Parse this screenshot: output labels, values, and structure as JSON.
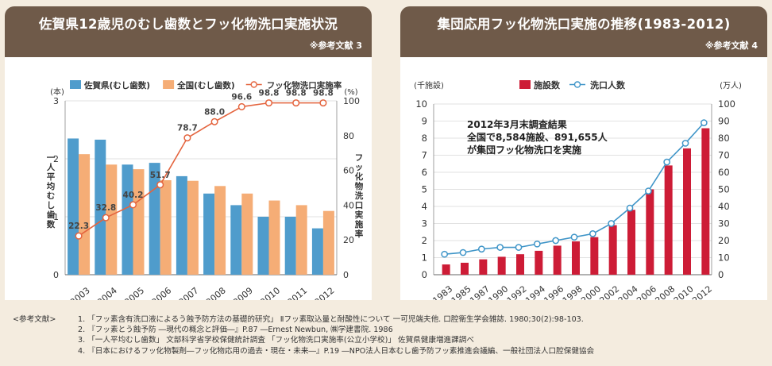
{
  "panel1": {
    "title": "佐賀県12歳児のむし歯数とフッ化物洗口実施状況",
    "ref": "※参考文献 3"
  },
  "panel2": {
    "title": "集団応用フッ化物洗口実施の推移(1983-2012)",
    "ref": "※参考文献 4"
  },
  "references": {
    "label": "<参考文献>",
    "items": [
      "1. 「フッ素含有洗口液によるう蝕予防方法の基礎的研究」 Ⅱフッ素取込量と耐酸性について 一可児端夫他. 口腔衛生学会雑誌. 1980;30(2):98-103.",
      "2. 『フッ素とう蝕予防 ―現代の概念と評価―』P.87 ―Ernest Newbun, ㈱学建書院. 1986",
      "3. 「一人平均むし歯数」 文部科学省学校保健統計調査 「フッ化物洗口実施率(公立小学校)」 佐賀県健康増進課調べ",
      "4. 『日本におけるフッ化物製剤―フッ化物応用の過去・現在・未来―』P.19 ―NPO法人日本むし歯予防フッ素推進会議編、一般社団法人口腔保健協会"
    ]
  },
  "chart_data": [
    {
      "type": "bar",
      "categories": [
        "2003",
        "2004",
        "2005",
        "2006",
        "2007",
        "2008",
        "2009",
        "2010",
        "2011",
        "2012"
      ],
      "series": [
        {
          "name": "佐賀県(むし歯数)",
          "type": "bar",
          "axis": "left",
          "color": "#4f9ccc",
          "values": [
            2.35,
            2.33,
            1.9,
            1.93,
            1.7,
            1.4,
            1.2,
            1.0,
            1.0,
            0.8
          ]
        },
        {
          "name": "全国(むし歯数)",
          "type": "bar",
          "axis": "left",
          "color": "#f5ad76",
          "values": [
            2.08,
            1.9,
            1.82,
            1.63,
            1.62,
            1.53,
            1.4,
            1.28,
            1.2,
            1.1
          ]
        },
        {
          "name": "フッ化物洗口実施率",
          "type": "line",
          "axis": "right",
          "color": "#e4643e",
          "values": [
            22.3,
            32.8,
            40.2,
            51.7,
            78.7,
            88.0,
            96.6,
            98.8,
            98.8,
            98.8
          ],
          "labels": [
            "22.3",
            "32.8",
            "40.2",
            "51.7",
            "78.7",
            "88.0",
            "96.6",
            "98.8",
            "98.8",
            "98.8"
          ]
        }
      ],
      "y_left": {
        "unit": "(本)",
        "label": "一人平均むし歯数",
        "ticks": [
          "0",
          "1",
          "2",
          "3"
        ],
        "range": [
          0,
          3
        ]
      },
      "y_right": {
        "unit": "(%)",
        "label": "フッ化物洗口実施率",
        "ticks": [
          "0",
          "20",
          "40",
          "60",
          "80",
          "100"
        ],
        "range": [
          0,
          100
        ]
      },
      "grid": true,
      "legend_position": "top"
    },
    {
      "type": "bar",
      "categories": [
        "1983",
        "1985",
        "1987",
        "1990",
        "1992",
        "1994",
        "1996",
        "1998",
        "2000",
        "2002",
        "2004",
        "2006",
        "2008",
        "2010",
        "2012"
      ],
      "series": [
        {
          "name": "施設数",
          "type": "bar",
          "axis": "left",
          "color": "#cd1c36",
          "values": [
            0.6,
            0.7,
            0.9,
            1.05,
            1.2,
            1.4,
            1.7,
            1.95,
            2.2,
            2.9,
            3.8,
            5.0,
            6.4,
            7.4,
            8.58
          ]
        },
        {
          "name": "洗口人数",
          "type": "line",
          "axis": "right",
          "color": "#3f95c8",
          "values": [
            12,
            13,
            15,
            16,
            16,
            18,
            20,
            22,
            24,
            30,
            39,
            49,
            66,
            77,
            89
          ]
        }
      ],
      "y_left": {
        "unit": "(千施設)",
        "ticks": [
          "0",
          "1",
          "2",
          "3",
          "4",
          "5",
          "6",
          "7",
          "8",
          "9",
          "10"
        ],
        "range": [
          0,
          10
        ]
      },
      "y_right": {
        "unit": "(万人)",
        "ticks": [
          "0",
          "10",
          "20",
          "30",
          "40",
          "50",
          "60",
          "70",
          "80",
          "90",
          "100"
        ],
        "range": [
          0,
          100
        ]
      },
      "annotation": [
        "2012年3月末調査結果",
        "全国で8,584施設、891,655人",
        "が集団フッ化物洗口を実施"
      ],
      "grid": true,
      "legend_position": "top"
    }
  ]
}
